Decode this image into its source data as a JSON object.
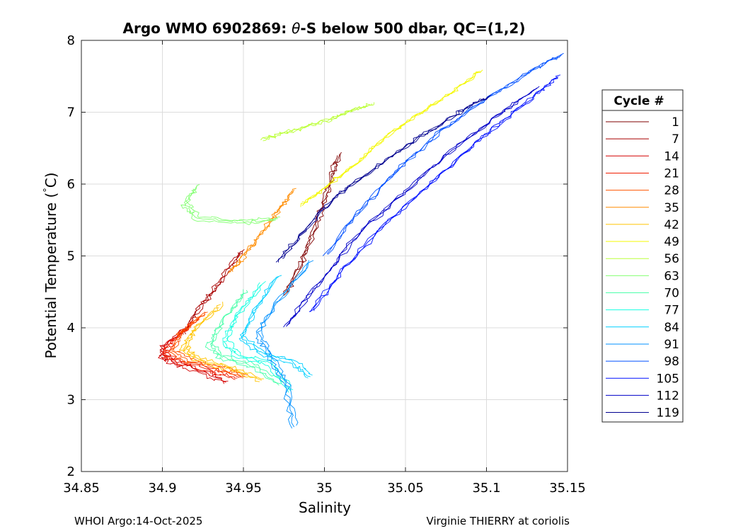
{
  "chart_data": {
    "type": "line",
    "title_prefix": "Argo WMO 6902869: ",
    "title_theta": "θ",
    "title_suffix": "-S below 500 dbar,  QC=(1,2)",
    "xlabel": "Salinity",
    "ylabel_main": "Potential Temperature (",
    "ylabel_degree": "°",
    "ylabel_unit": "C)",
    "xlim": [
      34.85,
      35.15
    ],
    "ylim": [
      2,
      8
    ],
    "xticks": [
      34.85,
      34.9,
      34.95,
      35,
      35.05,
      35.1,
      35.15
    ],
    "xtick_labels": [
      "34.85",
      "34.9",
      "34.95",
      "35",
      "35.05",
      "35.1",
      "35.15"
    ],
    "yticks": [
      2,
      3,
      4,
      5,
      6,
      7,
      8
    ],
    "ytick_labels": [
      "2",
      "3",
      "4",
      "5",
      "6",
      "7",
      "8"
    ],
    "grid": true,
    "legend_title": "Cycle #",
    "legend_position": "right-outside",
    "legend": [
      {
        "label": "1",
        "color": "#800000"
      },
      {
        "label": "7",
        "color": "#a80000"
      },
      {
        "label": "14",
        "color": "#d40000"
      },
      {
        "label": "21",
        "color": "#ef1c00"
      },
      {
        "label": "28",
        "color": "#ff5400"
      },
      {
        "label": "35",
        "color": "#ff8c00"
      },
      {
        "label": "42",
        "color": "#ffc400"
      },
      {
        "label": "49",
        "color": "#f4f802"
      },
      {
        "label": "56",
        "color": "#bcff3a"
      },
      {
        "label": "63",
        "color": "#84ff73"
      },
      {
        "label": "70",
        "color": "#4cffab"
      },
      {
        "label": "77",
        "color": "#15ffe2"
      },
      {
        "label": "84",
        "color": "#00d0ff"
      },
      {
        "label": "91",
        "color": "#0090ff"
      },
      {
        "label": "98",
        "color": "#0050ff"
      },
      {
        "label": "105",
        "color": "#0010ff"
      },
      {
        "label": "112",
        "color": "#0000c8"
      },
      {
        "label": "119",
        "color": "#00008f"
      }
    ],
    "series": [
      {
        "color": "#800000",
        "x": [
          34.975,
          34.985,
          34.992,
          34.998,
          35.003,
          35.008
        ],
        "y": [
          4.45,
          4.9,
          5.3,
          5.7,
          6.1,
          6.4
        ]
      },
      {
        "color": "#a80000",
        "x": [
          34.912,
          34.92,
          34.93,
          34.94,
          34.948
        ],
        "y": [
          3.9,
          4.2,
          4.5,
          4.8,
          5.05
        ]
      },
      {
        "color": "#d40000",
        "x": [
          34.915,
          34.9,
          34.898,
          34.905,
          34.922,
          34.938
        ],
        "y": [
          4.0,
          3.75,
          3.6,
          3.5,
          3.38,
          3.22
        ]
      },
      {
        "color": "#ef1c00",
        "x": [
          34.92,
          34.905,
          34.9,
          34.91,
          34.928,
          34.945
        ],
        "y": [
          4.1,
          3.8,
          3.62,
          3.5,
          3.4,
          3.28
        ]
      },
      {
        "color": "#ff5400",
        "x": [
          34.925,
          34.91,
          34.905,
          34.915,
          34.935,
          34.95
        ],
        "y": [
          4.2,
          3.9,
          3.65,
          3.52,
          3.42,
          3.3
        ]
      },
      {
        "color": "#ff8c00",
        "x": [
          34.94,
          34.95,
          34.96,
          34.97,
          34.98
        ],
        "y": [
          4.75,
          5.0,
          5.3,
          5.6,
          5.9
        ]
      },
      {
        "color": "#ffc400",
        "x": [
          34.935,
          34.918,
          34.912,
          34.92,
          34.94,
          34.96
        ],
        "y": [
          4.3,
          3.95,
          3.7,
          3.55,
          3.42,
          3.25
        ]
      },
      {
        "color": "#f4f802",
        "x": [
          34.985,
          35.0,
          35.02,
          35.04,
          35.06,
          35.08,
          35.095
        ],
        "y": [
          5.7,
          5.95,
          6.3,
          6.7,
          7.0,
          7.3,
          7.55
        ]
      },
      {
        "color": "#bcff3a",
        "x": [
          34.96,
          34.975,
          34.99,
          35.005,
          35.015,
          35.028
        ],
        "y": [
          6.6,
          6.7,
          6.8,
          6.9,
          7.0,
          7.1
        ]
      },
      {
        "color": "#84ff73",
        "x": [
          34.92,
          34.913,
          34.92,
          34.95,
          34.97
        ],
        "y": [
          5.95,
          5.7,
          5.5,
          5.45,
          5.5
        ]
      },
      {
        "color": "#4cffab",
        "x": [
          34.95,
          34.935,
          34.928,
          34.935,
          34.955,
          34.972
        ],
        "y": [
          4.5,
          4.05,
          3.75,
          3.58,
          3.45,
          3.2
        ]
      },
      {
        "color": "#15ffe2",
        "x": [
          34.96,
          34.945,
          34.937,
          34.945,
          34.965,
          34.978
        ],
        "y": [
          4.6,
          4.15,
          3.8,
          3.6,
          3.48,
          3.1
        ]
      },
      {
        "color": "#00d0ff",
        "x": [
          34.97,
          34.955,
          34.948,
          34.96,
          34.98,
          34.99
        ],
        "y": [
          4.7,
          4.2,
          3.85,
          3.62,
          3.5,
          3.3
        ]
      },
      {
        "color": "#0090ff",
        "x": [
          34.99,
          34.968,
          34.958,
          34.965,
          34.975,
          34.98
        ],
        "y": [
          4.9,
          4.3,
          3.9,
          3.6,
          3.2,
          2.6
        ]
      },
      {
        "color": "#0050ff",
        "x": [
          35.0,
          35.02,
          35.045,
          35.07,
          35.1,
          35.13,
          35.145
        ],
        "y": [
          5.0,
          5.6,
          6.2,
          6.7,
          7.2,
          7.6,
          7.78
        ]
      },
      {
        "color": "#0010ff",
        "x": [
          34.99,
          35.01,
          35.04,
          35.07,
          35.1,
          35.128,
          35.143
        ],
        "y": [
          4.2,
          4.8,
          5.5,
          6.1,
          6.7,
          7.2,
          7.48
        ]
      },
      {
        "color": "#0000c8",
        "x": [
          34.975,
          34.995,
          35.02,
          35.05,
          35.08,
          35.11,
          35.13
        ],
        "y": [
          4.0,
          4.6,
          5.3,
          5.9,
          6.5,
          7.0,
          7.32
        ]
      },
      {
        "color": "#00008f",
        "x": [
          34.97,
          34.985,
          35.005,
          35.03,
          35.055,
          35.08,
          35.1
        ],
        "y": [
          4.9,
          5.3,
          5.8,
          6.2,
          6.6,
          6.95,
          7.2
        ]
      }
    ]
  },
  "footer": {
    "left": "WHOI Argo:14-Oct-2025",
    "right": "Virginie THIERRY at coriolis"
  }
}
